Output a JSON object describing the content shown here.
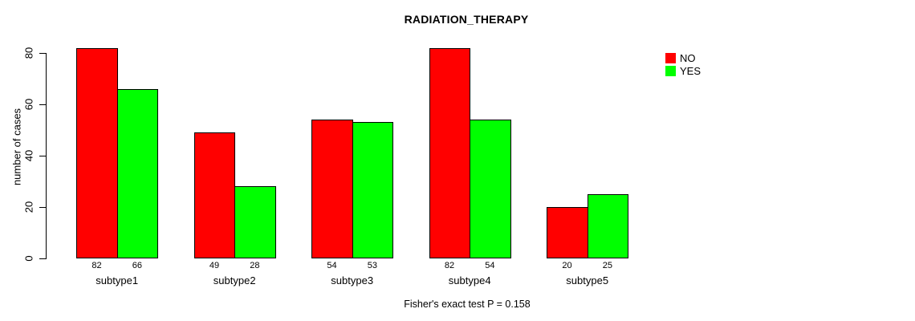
{
  "chart_data": {
    "type": "bar",
    "title": "RADIATION_THERAPY",
    "categories": [
      "subtype1",
      "subtype2",
      "subtype3",
      "subtype4",
      "subtype5"
    ],
    "series": [
      {
        "name": "NO",
        "color": "#FF0000",
        "values": [
          82,
          49,
          54,
          82,
          20
        ]
      },
      {
        "name": "YES",
        "color": "#00FF00",
        "values": [
          66,
          28,
          53,
          54,
          25
        ]
      }
    ],
    "ylabel": "number of cases",
    "xlabel": "",
    "yticks": [
      0,
      20,
      40,
      60,
      80
    ],
    "ylim": [
      0,
      85
    ],
    "grid": false,
    "bar_value_labels": true,
    "legend_position": "top-right-inside",
    "annotation": "Fisher's exact test P = 0.158"
  },
  "colors": {
    "background": "#FFFFFF",
    "axis": "#000000",
    "text": "#000000",
    "bar_no": "#FF0000",
    "bar_yes": "#00FF00"
  }
}
